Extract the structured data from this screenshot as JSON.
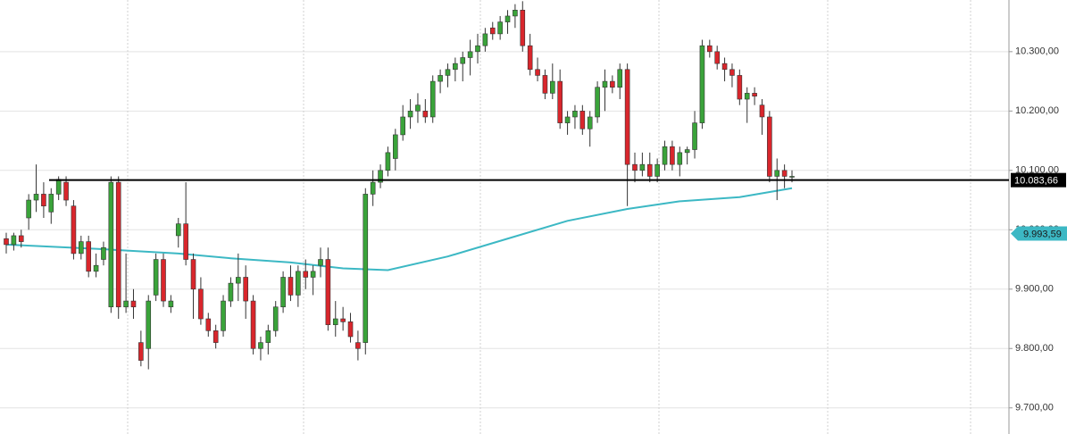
{
  "chart_data": {
    "type": "candlestick",
    "open": [
      9985,
      9975,
      9990,
      10020,
      10050,
      10060,
      10030,
      10060,
      10080,
      10040,
      9960,
      9980,
      9930,
      9950,
      9870,
      10080,
      9870,
      9880,
      9810,
      9800,
      9890,
      9950,
      9870,
      9990,
      10010,
      9950,
      9900,
      9850,
      9830,
      9830,
      9880,
      9910,
      9920,
      9880,
      9800,
      9810,
      9830,
      9870,
      9920,
      9890,
      9930,
      9920,
      9940,
      9950,
      9840,
      9850,
      9845,
      9810,
      9810,
      10060,
      10080,
      10100,
      10120,
      10160,
      10190,
      10200,
      10200,
      10190,
      10250,
      10260,
      10270,
      10280,
      10290,
      10300,
      10310,
      10340,
      10330,
      10350,
      10360,
      10370,
      10310,
      10270,
      10260,
      10230,
      10250,
      10180,
      10190,
      10200,
      10170,
      10190,
      10240,
      10250,
      10240,
      10270,
      10110,
      10100,
      10110,
      10090,
      10110,
      10140,
      10110,
      10130,
      10135,
      10180,
      10310,
      10300,
      10280,
      10270,
      10260,
      10220,
      10230,
      10210,
      10190,
      10090,
      10100,
      10090
    ],
    "high": [
      9995,
      9995,
      10000,
      10060,
      10110,
      10080,
      10070,
      10090,
      10090,
      10050,
      9990,
      9990,
      9960,
      9980,
      10090,
      10090,
      9960,
      9900,
      9830,
      9890,
      9960,
      9960,
      9890,
      10020,
      10080,
      9960,
      9920,
      9860,
      9840,
      9890,
      9920,
      9960,
      9940,
      9890,
      9820,
      9840,
      9880,
      9930,
      9940,
      9940,
      9950,
      9940,
      9970,
      9970,
      9880,
      9870,
      9860,
      9830,
      10070,
      10100,
      10110,
      10140,
      10170,
      10210,
      10220,
      10230,
      10220,
      10260,
      10270,
      10280,
      10290,
      10300,
      10320,
      10330,
      10340,
      10350,
      10360,
      10370,
      10380,
      10385,
      10330,
      10290,
      10270,
      10280,
      10270,
      10200,
      10210,
      10210,
      10200,
      10250,
      10270,
      10260,
      10280,
      10280,
      10130,
      10130,
      10130,
      10120,
      10150,
      10150,
      10140,
      10140,
      10200,
      10320,
      10320,
      10310,
      10290,
      10280,
      10270,
      10240,
      10240,
      10220,
      10200,
      10120,
      10110,
      10100
    ],
    "low": [
      9960,
      9965,
      9970,
      10000,
      10030,
      10020,
      10010,
      10050,
      10040,
      9950,
      9950,
      9920,
      9920,
      9940,
      9860,
      9850,
      9860,
      9850,
      9770,
      9765,
      9880,
      9870,
      9860,
      9970,
      9940,
      9850,
      9840,
      9820,
      9800,
      9820,
      9870,
      9880,
      9850,
      9790,
      9780,
      9790,
      9820,
      9860,
      9880,
      9870,
      9900,
      9890,
      9920,
      9830,
      9820,
      9830,
      9810,
      9780,
      9790,
      10040,
      10070,
      10090,
      10100,
      10150,
      10170,
      10180,
      10180,
      10180,
      10230,
      10240,
      10250,
      10250,
      10260,
      10280,
      10300,
      10320,
      10320,
      10330,
      10340,
      10300,
      10260,
      10250,
      10220,
      10220,
      10170,
      10160,
      10170,
      10160,
      10140,
      10180,
      10200,
      10230,
      10220,
      10040,
      10080,
      10090,
      10080,
      10080,
      10100,
      10100,
      10090,
      10110,
      10120,
      10170,
      10290,
      10270,
      10250,
      10240,
      10210,
      10180,
      10210,
      10160,
      10080,
      10050,
      10070,
      10080
    ],
    "close": [
      9975,
      9990,
      9980,
      10050,
      10060,
      10040,
      10060,
      10085,
      10050,
      9960,
      9980,
      9930,
      9940,
      9970,
      10080,
      9870,
      9880,
      9870,
      9780,
      9880,
      9950,
      9880,
      9880,
      10010,
      9950,
      9900,
      9850,
      9830,
      9810,
      9880,
      9910,
      9920,
      9880,
      9800,
      9810,
      9830,
      9870,
      9920,
      9890,
      9930,
      9920,
      9930,
      9950,
      9840,
      9850,
      9845,
      9820,
      9800,
      10060,
      10080,
      10100,
      10130,
      10160,
      10190,
      10200,
      10210,
      10190,
      10250,
      10260,
      10270,
      10280,
      10290,
      10300,
      10310,
      10330,
      10330,
      10350,
      10360,
      10370,
      10310,
      10270,
      10260,
      10230,
      10250,
      10180,
      10190,
      10200,
      10170,
      10190,
      10240,
      10250,
      10240,
      10270,
      10110,
      10100,
      10110,
      10090,
      10110,
      10140,
      10110,
      10130,
      10135,
      10180,
      10310,
      10300,
      10280,
      10270,
      10260,
      10220,
      10230,
      10225,
      10190,
      10090,
      10100,
      10090,
      10090
    ],
    "up_color": "#3aa33a",
    "down_color": "#d9262c",
    "ylim": [
      9656,
      10387
    ],
    "yticks": [
      {
        "value": 9700,
        "label": "9.700,00"
      },
      {
        "value": 9800,
        "label": "9.800,00"
      },
      {
        "value": 9900,
        "label": "9.900,00"
      },
      {
        "value": 10000,
        "label": "10.000,00"
      },
      {
        "value": 10100,
        "label": "10.100,00"
      },
      {
        "value": 10200,
        "label": "10.200,00"
      },
      {
        "value": 10300,
        "label": "10.300,00"
      }
    ],
    "grid": true,
    "moving_average": {
      "color": "#3cb8c4",
      "x": [
        0,
        12,
        23,
        30,
        38,
        45,
        51,
        59,
        67,
        75,
        83,
        90,
        98,
        105
      ],
      "values": [
        9975,
        9968,
        9960,
        9952,
        9945,
        9935,
        9932,
        9955,
        9985,
        10015,
        10035,
        10048,
        10055,
        10070
      ]
    },
    "level": {
      "value": 10083.66,
      "label": "10.083,66",
      "color": "#000000"
    },
    "last_tag": {
      "value": 9993.59,
      "label": "9.993,59",
      "color": "#3cb8c4"
    }
  }
}
